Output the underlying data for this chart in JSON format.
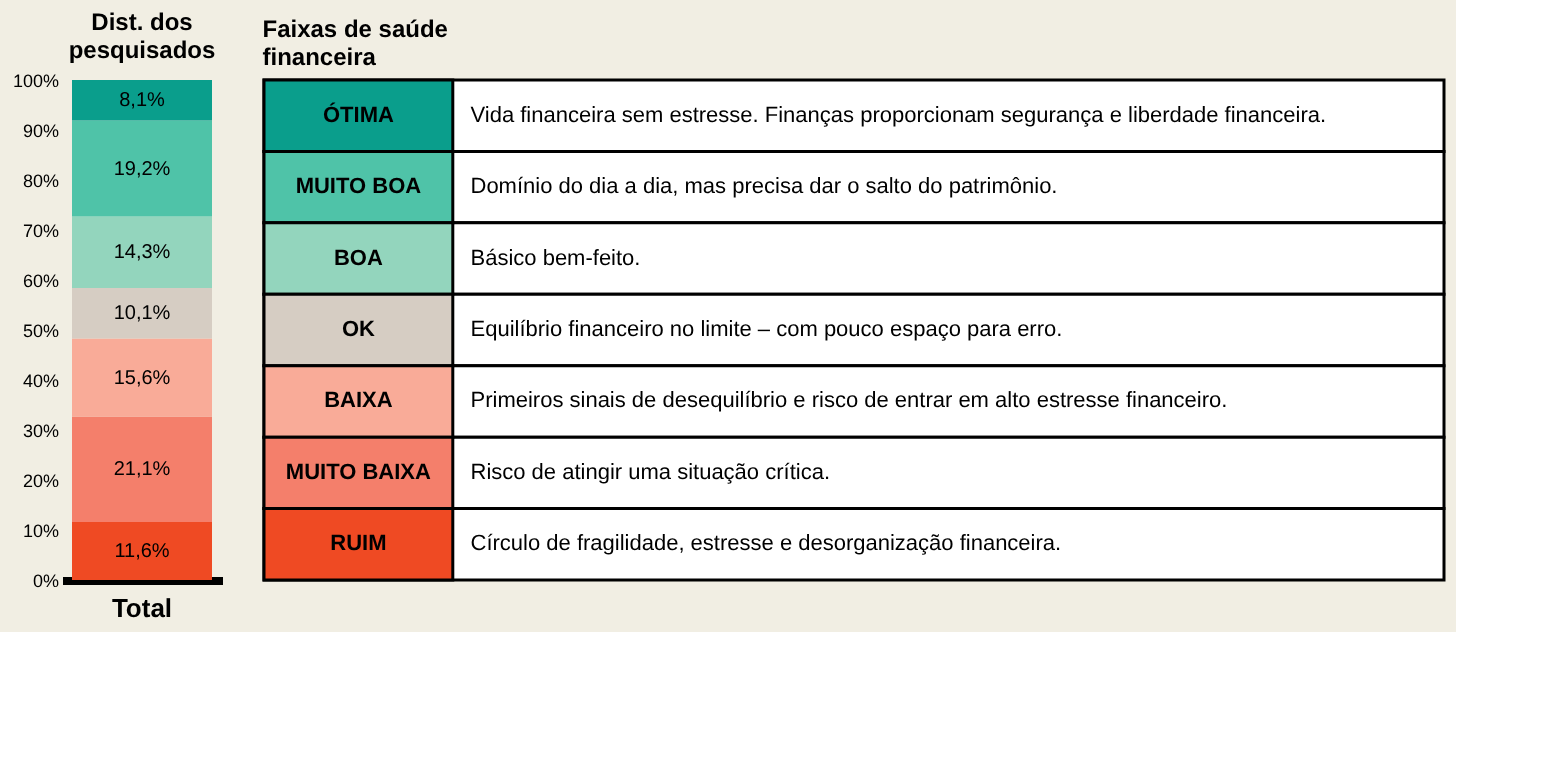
{
  "chart_data": {
    "type": "bar",
    "stacked": true,
    "title": "Dist. dos pesquisados",
    "legend_title": "Faixas de saúde financeira",
    "categories": [
      "Total"
    ],
    "series": [
      {
        "name": "RUIM",
        "color": "#ef4a23",
        "values": [
          11.6
        ]
      },
      {
        "name": "MUITO BAIXA",
        "color": "#f47f6b",
        "values": [
          21.1
        ]
      },
      {
        "name": "BAIXA",
        "color": "#f9ab98",
        "values": [
          15.6
        ]
      },
      {
        "name": "OK",
        "color": "#d6cdc3",
        "values": [
          10.1
        ]
      },
      {
        "name": "BOA",
        "color": "#93d5bd",
        "values": [
          14.3
        ]
      },
      {
        "name": "MUITO BOA",
        "color": "#4fc3a8",
        "values": [
          19.2
        ]
      },
      {
        "name": "ÓTIMA",
        "color": "#0a9e8c",
        "values": [
          8.1
        ]
      }
    ],
    "value_labels": [
      "11,6%",
      "21,1%",
      "15,6%",
      "10,1%",
      "14,3%",
      "19,2%",
      "8,1%"
    ],
    "ylim": [
      0,
      100
    ],
    "yticks": [
      {
        "value": 0,
        "label": "0%"
      },
      {
        "value": 10,
        "label": "10%"
      },
      {
        "value": 20,
        "label": "20%"
      },
      {
        "value": 30,
        "label": "30%"
      },
      {
        "value": 40,
        "label": "40%"
      },
      {
        "value": 50,
        "label": "50%"
      },
      {
        "value": 60,
        "label": "60%"
      },
      {
        "value": 70,
        "label": "70%"
      },
      {
        "value": 80,
        "label": "80%"
      },
      {
        "value": 90,
        "label": "90%"
      },
      {
        "value": 100,
        "label": "100%"
      }
    ],
    "grid": false,
    "legend": "right",
    "annotations": [
      "Vida financeira sem estresse. Finanças proporcionam segurança e liberdade financeira.",
      "Domínio do dia a dia, mas precisa dar o salto do patrimônio.",
      "Básico bem-feito.",
      "Equilíbrio financeiro no limite – com pouco espaço para erro.",
      "Primeiros sinais de desequilíbrio e risco de entrar em alto estresse financeiro.",
      "Risco de atingir uma situação crítica.",
      "Círculo de fragilidade, estresse e desorganização financeira."
    ]
  }
}
